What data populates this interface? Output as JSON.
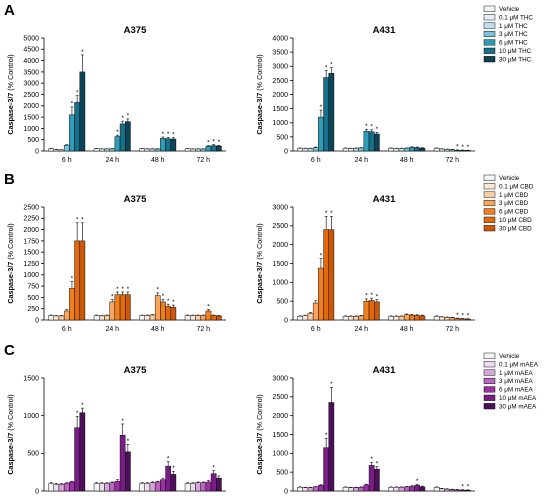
{
  "chart_data": [
    {
      "panel": "A",
      "type": "bar",
      "title": "A375",
      "ylabel_bold": "Caspase-3/7",
      "ylabel_rest": " (% Control)",
      "ylim": [
        0,
        5000
      ],
      "yticks": [
        0,
        500,
        1000,
        1500,
        2000,
        2500,
        3000,
        3500,
        4000,
        4500,
        5000
      ],
      "categories": [
        "6 h",
        "24 h",
        "48 h",
        "72 h"
      ],
      "series": [
        {
          "name": "Vehicle",
          "values": [
            100,
            100,
            100,
            100
          ],
          "errors": [
            10,
            10,
            10,
            10
          ],
          "sig": [
            false,
            false,
            false,
            false
          ]
        },
        {
          "name": "0.1 μM THC",
          "values": [
            60,
            90,
            90,
            90
          ],
          "errors": [
            10,
            10,
            10,
            10
          ],
          "sig": [
            false,
            false,
            false,
            false
          ]
        },
        {
          "name": "1 μM THC",
          "values": [
            50,
            90,
            90,
            90
          ],
          "errors": [
            10,
            10,
            10,
            10
          ],
          "sig": [
            false,
            false,
            false,
            false
          ]
        },
        {
          "name": "3 μM THC",
          "values": [
            250,
            100,
            90,
            90
          ],
          "errors": [
            30,
            10,
            10,
            10
          ],
          "sig": [
            false,
            false,
            false,
            false
          ]
        },
        {
          "name": "6 μM THC",
          "values": [
            1600,
            640,
            560,
            210
          ],
          "errors": [
            350,
            60,
            60,
            30
          ],
          "sig": [
            true,
            true,
            true,
            true
          ]
        },
        {
          "name": "10 μM THC",
          "values": [
            2150,
            1200,
            540,
            240
          ],
          "errors": [
            300,
            120,
            60,
            40
          ],
          "sig": [
            true,
            true,
            true,
            true
          ]
        },
        {
          "name": "30 μM THC",
          "values": [
            3500,
            1300,
            530,
            220
          ],
          "errors": [
            750,
            120,
            60,
            30
          ],
          "sig": [
            true,
            true,
            true,
            true
          ]
        }
      ]
    },
    {
      "panel": "",
      "type": "bar",
      "title": "A431",
      "ylabel_bold": "Caspase-3/7",
      "ylabel_rest": " (% Control)",
      "ylim": [
        0,
        4000
      ],
      "yticks": [
        0,
        500,
        1000,
        1500,
        2000,
        2500,
        3000,
        3500,
        4000
      ],
      "categories": [
        "6 h",
        "24 h",
        "48 h",
        "72 h"
      ],
      "series": [
        {
          "name": "Vehicle",
          "values": [
            100,
            100,
            100,
            100
          ],
          "errors": [
            10,
            10,
            10,
            10
          ],
          "sig": [
            false,
            false,
            false,
            false
          ]
        },
        {
          "name": "0.1 μM THC",
          "values": [
            90,
            90,
            90,
            70
          ],
          "errors": [
            10,
            10,
            10,
            10
          ],
          "sig": [
            false,
            false,
            false,
            false
          ]
        },
        {
          "name": "1 μM THC",
          "values": [
            90,
            100,
            90,
            60
          ],
          "errors": [
            10,
            10,
            10,
            10
          ],
          "sig": [
            false,
            false,
            false,
            false
          ]
        },
        {
          "name": "3 μM THC",
          "values": [
            120,
            110,
            100,
            50
          ],
          "errors": [
            20,
            10,
            10,
            10
          ],
          "sig": [
            false,
            false,
            false,
            false
          ]
        },
        {
          "name": "6 μM THC",
          "values": [
            1200,
            700,
            130,
            30
          ],
          "errors": [
            250,
            70,
            20,
            10
          ],
          "sig": [
            true,
            true,
            false,
            true
          ]
        },
        {
          "name": "10 μM THC",
          "values": [
            2600,
            680,
            120,
            25
          ],
          "errors": [
            250,
            70,
            20,
            10
          ],
          "sig": [
            true,
            true,
            false,
            true
          ]
        },
        {
          "name": "30 μM THC",
          "values": [
            2750,
            600,
            100,
            20
          ],
          "errors": [
            200,
            60,
            20,
            10
          ],
          "sig": [
            true,
            true,
            false,
            true
          ]
        }
      ]
    },
    {
      "panel": "B",
      "type": "bar",
      "title": "A375",
      "ylabel_bold": "Caspase-3/7",
      "ylabel_rest": " (% Control)",
      "ylim": [
        0,
        2500
      ],
      "yticks": [
        0,
        250,
        500,
        750,
        1000,
        1250,
        1500,
        1750,
        2000,
        2250,
        2500
      ],
      "categories": [
        "6 h",
        "24 h",
        "48 h",
        "72 h"
      ],
      "series": [
        {
          "name": "Vehicle",
          "values": [
            100,
            100,
            100,
            100
          ],
          "errors": [
            10,
            10,
            10,
            10
          ],
          "sig": [
            false,
            false,
            false,
            false
          ]
        },
        {
          "name": "0.1 μM CBD",
          "values": [
            90,
            90,
            100,
            100
          ],
          "errors": [
            10,
            10,
            10,
            10
          ],
          "sig": [
            false,
            false,
            false,
            false
          ]
        },
        {
          "name": "1 μM CBD",
          "values": [
            90,
            100,
            110,
            100
          ],
          "errors": [
            10,
            10,
            10,
            10
          ],
          "sig": [
            false,
            false,
            false,
            false
          ]
        },
        {
          "name": "3 μM CBD",
          "values": [
            200,
            400,
            540,
            100
          ],
          "errors": [
            30,
            50,
            60,
            10
          ],
          "sig": [
            false,
            true,
            true,
            false
          ]
        },
        {
          "name": "6 μM CBD",
          "values": [
            700,
            560,
            400,
            200
          ],
          "errors": [
            150,
            60,
            60,
            30
          ],
          "sig": [
            true,
            true,
            true,
            true
          ]
        },
        {
          "name": "10 μM CBD",
          "values": [
            1750,
            560,
            300,
            100
          ],
          "errors": [
            400,
            60,
            50,
            10
          ],
          "sig": [
            true,
            true,
            true,
            false
          ]
        },
        {
          "name": "30 μM CBD",
          "values": [
            1750,
            560,
            280,
            90
          ],
          "errors": [
            400,
            60,
            50,
            10
          ],
          "sig": [
            true,
            true,
            true,
            false
          ]
        }
      ]
    },
    {
      "panel": "",
      "type": "bar",
      "title": "A431",
      "ylabel_bold": "Caspase-3/7",
      "ylabel_rest": " (% Control)",
      "ylim": [
        0,
        3000
      ],
      "yticks": [
        0,
        500,
        1000,
        1500,
        2000,
        2500,
        3000
      ],
      "categories": [
        "6 h",
        "24 h",
        "48 h",
        "72 h"
      ],
      "series": [
        {
          "name": "Vehicle",
          "values": [
            100,
            100,
            100,
            100
          ],
          "errors": [
            10,
            10,
            10,
            10
          ],
          "sig": [
            false,
            false,
            false,
            false
          ]
        },
        {
          "name": "0.1 μM CBD",
          "values": [
            120,
            100,
            100,
            80
          ],
          "errors": [
            10,
            10,
            10,
            10
          ],
          "sig": [
            false,
            false,
            false,
            false
          ]
        },
        {
          "name": "1 μM CBD",
          "values": [
            180,
            100,
            100,
            70
          ],
          "errors": [
            20,
            10,
            10,
            10
          ],
          "sig": [
            false,
            false,
            false,
            false
          ]
        },
        {
          "name": "3 μM CBD",
          "values": [
            450,
            110,
            140,
            60
          ],
          "errors": [
            60,
            10,
            20,
            10
          ],
          "sig": [
            false,
            false,
            false,
            false
          ]
        },
        {
          "name": "6 μM CBD",
          "values": [
            1380,
            500,
            130,
            40
          ],
          "errors": [
            250,
            60,
            20,
            10
          ],
          "sig": [
            true,
            true,
            false,
            true
          ]
        },
        {
          "name": "10 μM CBD",
          "values": [
            2400,
            520,
            120,
            30
          ],
          "errors": [
            350,
            60,
            20,
            10
          ],
          "sig": [
            true,
            true,
            false,
            true
          ]
        },
        {
          "name": "30 μM CBD",
          "values": [
            2400,
            480,
            110,
            25
          ],
          "errors": [
            350,
            60,
            20,
            10
          ],
          "sig": [
            true,
            true,
            false,
            true
          ]
        }
      ]
    },
    {
      "panel": "C",
      "type": "bar",
      "title": "A375",
      "ylabel_bold": "Caspase-3/7",
      "ylabel_rest": " (% Control)",
      "ylim": [
        0,
        1500
      ],
      "yticks": [
        0,
        500,
        1000,
        1500
      ],
      "categories": [
        "6 h",
        "24 h",
        "48 h",
        "72 h"
      ],
      "series": [
        {
          "name": "Vehicle",
          "values": [
            100,
            100,
            100,
            100
          ],
          "errors": [
            10,
            10,
            10,
            10
          ],
          "sig": [
            false,
            false,
            false,
            false
          ]
        },
        {
          "name": "0.1 μM mAEA",
          "values": [
            90,
            100,
            100,
            100
          ],
          "errors": [
            10,
            10,
            10,
            10
          ],
          "sig": [
            false,
            false,
            false,
            false
          ]
        },
        {
          "name": "1 μM mAEA",
          "values": [
            90,
            100,
            110,
            110
          ],
          "errors": [
            10,
            10,
            10,
            10
          ],
          "sig": [
            false,
            false,
            false,
            false
          ]
        },
        {
          "name": "3 μM mAEA",
          "values": [
            100,
            110,
            120,
            110
          ],
          "errors": [
            10,
            10,
            10,
            10
          ],
          "sig": [
            false,
            false,
            false,
            false
          ]
        },
        {
          "name": "6 μM mAEA",
          "values": [
            120,
            130,
            150,
            120
          ],
          "errors": [
            10,
            20,
            20,
            20
          ],
          "sig": [
            false,
            false,
            false,
            false
          ]
        },
        {
          "name": "10 μM mAEA",
          "values": [
            840,
            740,
            330,
            230
          ],
          "errors": [
            150,
            150,
            60,
            40
          ],
          "sig": [
            true,
            true,
            true,
            true
          ]
        },
        {
          "name": "30 μM mAEA",
          "values": [
            1040,
            520,
            220,
            170
          ],
          "errors": [
            60,
            100,
            40,
            30
          ],
          "sig": [
            true,
            true,
            true,
            false
          ]
        }
      ]
    },
    {
      "panel": "",
      "type": "bar",
      "title": "A431",
      "ylabel_bold": "Caspase-3/7",
      "ylabel_rest": " (% Control)",
      "ylim": [
        0,
        3000
      ],
      "yticks": [
        0,
        500,
        1000,
        1500,
        2000,
        2500,
        3000
      ],
      "categories": [
        "6 h",
        "24 h",
        "48 h",
        "72 h"
      ],
      "series": [
        {
          "name": "Vehicle",
          "values": [
            100,
            100,
            100,
            100
          ],
          "errors": [
            10,
            10,
            10,
            10
          ],
          "sig": [
            false,
            false,
            false,
            false
          ]
        },
        {
          "name": "0.1 μM mAEA",
          "values": [
            90,
            90,
            100,
            60
          ],
          "errors": [
            10,
            10,
            10,
            10
          ],
          "sig": [
            false,
            false,
            false,
            false
          ]
        },
        {
          "name": "1 μM mAEA",
          "values": [
            90,
            90,
            100,
            50
          ],
          "errors": [
            10,
            10,
            10,
            10
          ],
          "sig": [
            false,
            false,
            false,
            false
          ]
        },
        {
          "name": "3 μM mAEA",
          "values": [
            110,
            100,
            110,
            40
          ],
          "errors": [
            10,
            10,
            10,
            10
          ],
          "sig": [
            false,
            false,
            false,
            false
          ]
        },
        {
          "name": "6 μM mAEA",
          "values": [
            150,
            160,
            120,
            30
          ],
          "errors": [
            20,
            20,
            20,
            10
          ],
          "sig": [
            false,
            false,
            false,
            false
          ]
        },
        {
          "name": "10 μM mAEA",
          "values": [
            1150,
            680,
            150,
            25
          ],
          "errors": [
            250,
            80,
            30,
            10
          ],
          "sig": [
            true,
            true,
            true,
            true
          ]
        },
        {
          "name": "30 μM mAEA",
          "values": [
            2350,
            580,
            110,
            20
          ],
          "errors": [
            400,
            70,
            20,
            10
          ],
          "sig": [
            true,
            true,
            false,
            true
          ]
        }
      ]
    }
  ],
  "legends": [
    {
      "labels": [
        "Vehicle",
        "0.1 μM THC",
        "1 μM THC",
        "3 μM THC",
        "6 μM THC",
        "10 μM THC",
        "30 μM THC"
      ],
      "colors": [
        "#f4f4f4",
        "#e3f1f6",
        "#bfe1ee",
        "#7cc4dc",
        "#2f9cb9",
        "#176f8a",
        "#0c4356"
      ]
    },
    {
      "labels": [
        "Vehicle",
        "0.1 μM CBD",
        "1 μM CBD",
        "3 μM CBD",
        "6 μM CBD",
        "10 μM CBD",
        "30 μM CBD"
      ],
      "colors": [
        "#f4f4f4",
        "#fde8d6",
        "#fbcfa6",
        "#f7a55f",
        "#f27f1e",
        "#e26a0c",
        "#c9580a"
      ]
    },
    {
      "labels": [
        "Vehicle",
        "0.1 μM mAEA",
        "1 μM mAEA",
        "3 μM mAEA",
        "6 μM mAEA",
        "10 μM mAEA",
        "30 μM mAEA"
      ],
      "colors": [
        "#f4f4f4",
        "#eedaf0",
        "#d8a6dd",
        "#b966c1",
        "#9b2fa6",
        "#7a1c86",
        "#4e0f5a"
      ]
    }
  ],
  "significance_marker": "*"
}
